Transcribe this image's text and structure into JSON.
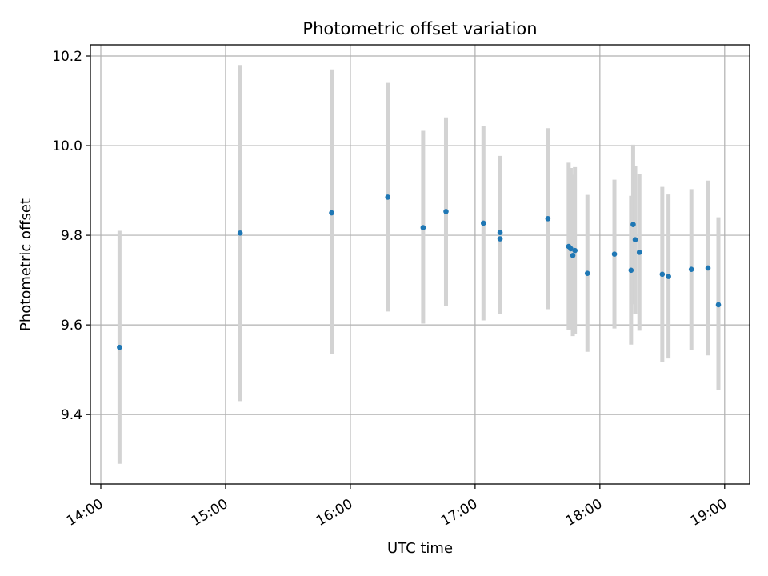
{
  "chart_data": {
    "type": "scatter",
    "title": "Photometric offset variation",
    "xlabel": "UTC time",
    "ylabel": "Photometric offset",
    "xlim": [
      "13:55",
      "19:12"
    ],
    "ylim": [
      9.245,
      10.225
    ],
    "x_ticks": [
      "14:00",
      "15:00",
      "16:00",
      "17:00",
      "18:00",
      "19:00"
    ],
    "y_ticks": [
      9.4,
      9.6,
      9.8,
      10.0,
      10.2
    ],
    "y_tick_labels": [
      "9.4",
      "9.6",
      "9.8",
      "10.0",
      "10.2"
    ],
    "grid": true,
    "colors": {
      "point": "#1f77b4",
      "errorbar": "#d3d3d3"
    },
    "points": [
      {
        "x": "14:09",
        "y": 9.55,
        "yerr_low": 9.29,
        "yerr_high": 9.81
      },
      {
        "x": "15:07",
        "y": 9.805,
        "yerr_low": 9.43,
        "yerr_high": 10.18
      },
      {
        "x": "15:51",
        "y": 9.85,
        "yerr_low": 9.535,
        "yerr_high": 10.17
      },
      {
        "x": "16:18",
        "y": 9.885,
        "yerr_low": 9.63,
        "yerr_high": 10.14
      },
      {
        "x": "16:35",
        "y": 9.817,
        "yerr_low": 9.603,
        "yerr_high": 10.033
      },
      {
        "x": "16:46",
        "y": 9.853,
        "yerr_low": 9.643,
        "yerr_high": 10.063
      },
      {
        "x": "17:04",
        "y": 9.827,
        "yerr_low": 9.61,
        "yerr_high": 10.044
      },
      {
        "x": "17:12",
        "y": 9.806,
        "yerr_low": 9.635,
        "yerr_high": 9.977
      },
      {
        "x": "17:12",
        "y": 9.792,
        "yerr_low": 9.625,
        "yerr_high": 9.959
      },
      {
        "x": "17:35",
        "y": 9.837,
        "yerr_low": 9.635,
        "yerr_high": 10.039
      },
      {
        "x": "17:45",
        "y": 9.775,
        "yerr_low": 9.588,
        "yerr_high": 9.962
      },
      {
        "x": "17:46",
        "y": 9.77,
        "yerr_low": 9.59,
        "yerr_high": 9.95
      },
      {
        "x": "17:47",
        "y": 9.755,
        "yerr_low": 9.575,
        "yerr_high": 9.935
      },
      {
        "x": "17:48",
        "y": 9.766,
        "yerr_low": 9.58,
        "yerr_high": 9.952
      },
      {
        "x": "17:54",
        "y": 9.715,
        "yerr_low": 9.54,
        "yerr_high": 9.89
      },
      {
        "x": "18:07",
        "y": 9.758,
        "yerr_low": 9.592,
        "yerr_high": 9.924
      },
      {
        "x": "18:15",
        "y": 9.722,
        "yerr_low": 9.556,
        "yerr_high": 9.888
      },
      {
        "x": "18:16",
        "y": 9.824,
        "yerr_low": 9.646,
        "yerr_high": 10.002
      },
      {
        "x": "18:17",
        "y": 9.79,
        "yerr_low": 9.625,
        "yerr_high": 9.955
      },
      {
        "x": "18:19",
        "y": 9.762,
        "yerr_low": 9.587,
        "yerr_high": 9.937
      },
      {
        "x": "18:30",
        "y": 9.713,
        "yerr_low": 9.518,
        "yerr_high": 9.908
      },
      {
        "x": "18:33",
        "y": 9.708,
        "yerr_low": 9.525,
        "yerr_high": 9.891
      },
      {
        "x": "18:44",
        "y": 9.724,
        "yerr_low": 9.545,
        "yerr_high": 9.903
      },
      {
        "x": "18:52",
        "y": 9.727,
        "yerr_low": 9.532,
        "yerr_high": 9.922
      },
      {
        "x": "18:57",
        "y": 9.645,
        "yerr_low": 9.455,
        "yerr_high": 9.84
      }
    ]
  }
}
